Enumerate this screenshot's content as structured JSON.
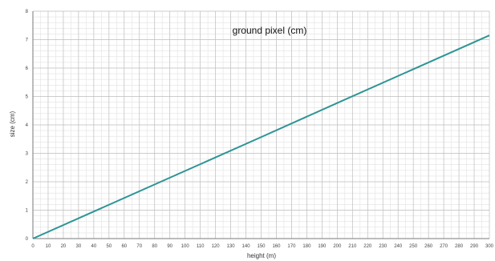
{
  "chart_data": {
    "type": "line",
    "title": "ground pixel (cm)",
    "xlabel": "height (m)",
    "ylabel": "size (cm)",
    "xlim": [
      0,
      300
    ],
    "ylim": [
      0,
      8
    ],
    "xticks": [
      0,
      10,
      20,
      30,
      40,
      50,
      60,
      70,
      80,
      90,
      100,
      110,
      120,
      130,
      140,
      150,
      160,
      170,
      180,
      190,
      200,
      210,
      220,
      230,
      240,
      250,
      260,
      270,
      280,
      290,
      300
    ],
    "yticks": [
      0,
      1,
      2,
      3,
      4,
      5,
      6,
      7,
      8
    ],
    "grid": true,
    "legend": "none",
    "series": [
      {
        "color": "#2e9494",
        "x": [
          0,
          50,
          100,
          150,
          200,
          250,
          300
        ],
        "y": [
          0,
          1.19,
          2.38,
          3.57,
          4.77,
          5.96,
          7.15
        ]
      }
    ]
  }
}
